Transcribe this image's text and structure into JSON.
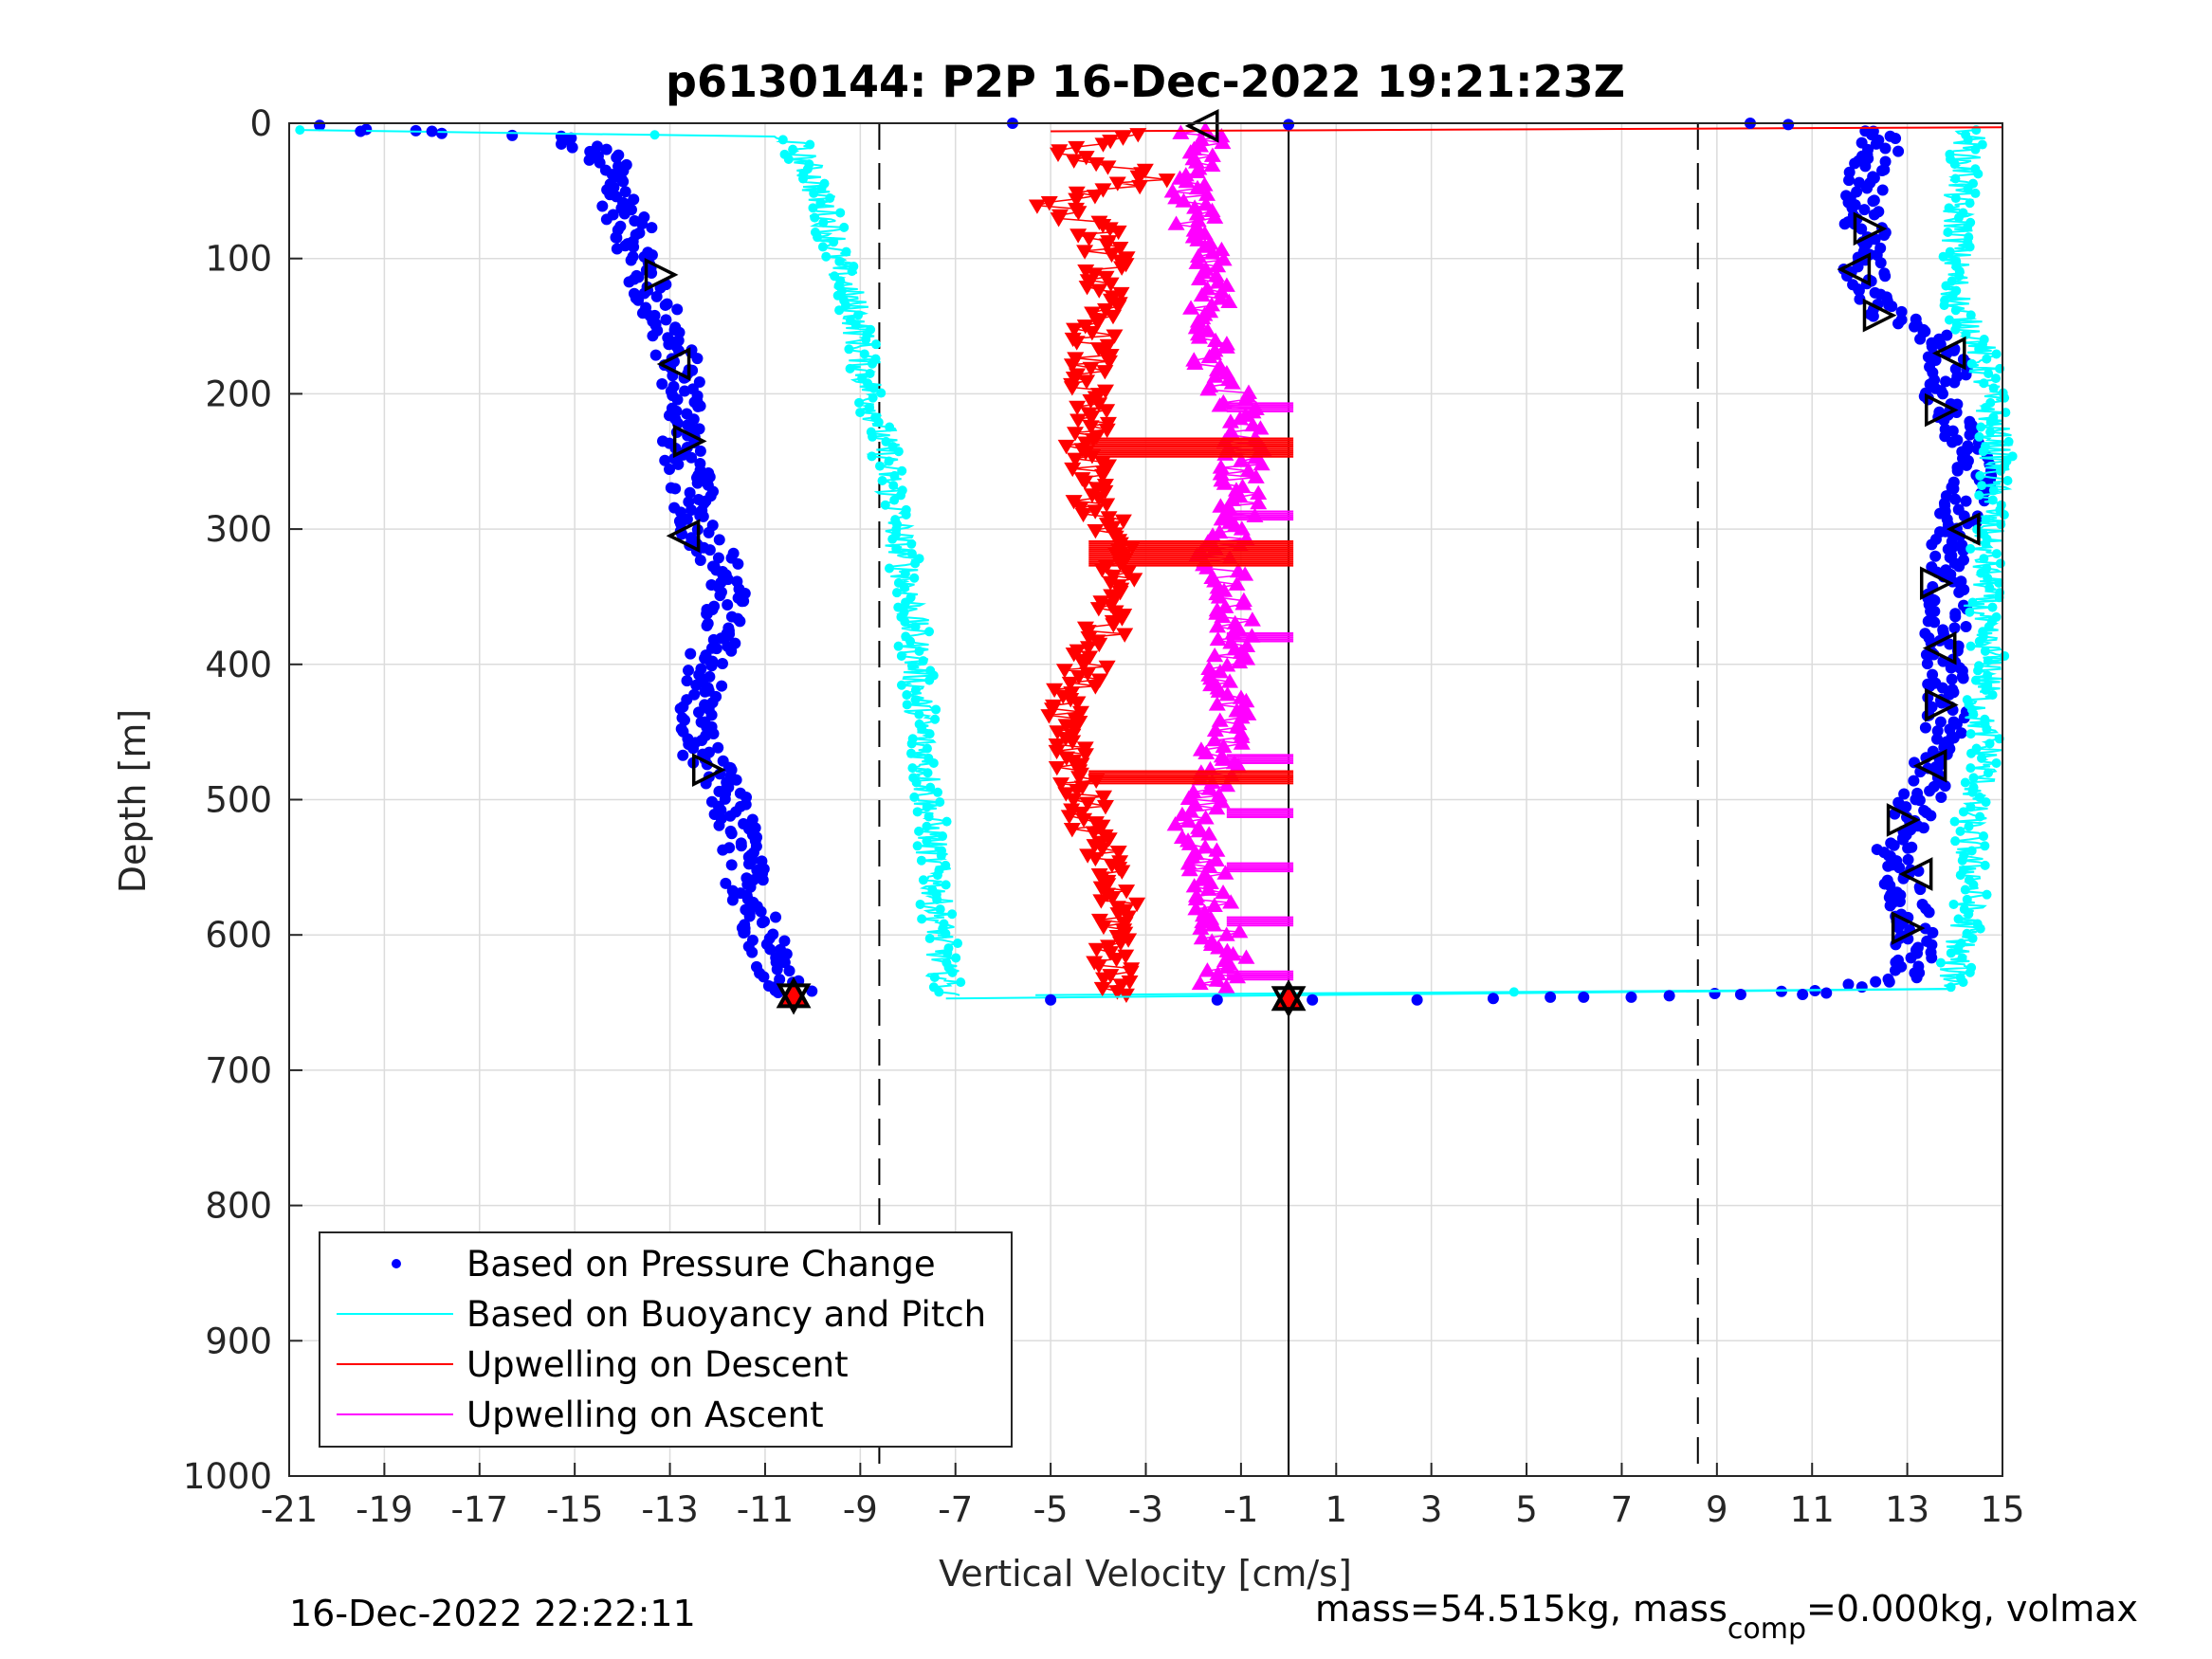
{
  "chart_data": {
    "type": "scatter",
    "title": "p6130144: P2P 16-Dec-2022 19:21:23Z",
    "xlabel": "Vertical Velocity [cm/s]",
    "ylabel": "Depth [m]",
    "xlim": [
      -21,
      15
    ],
    "ylim": [
      0,
      1000
    ],
    "y_reversed": true,
    "grid": true,
    "x_ticks": [
      "-21",
      "-19",
      "-17",
      "-15",
      "-13",
      "-11",
      "-9",
      "-7",
      "-5",
      "-3",
      "-1",
      "1",
      "3",
      "5",
      "7",
      "9",
      "11",
      "13",
      "15"
    ],
    "y_ticks": [
      "0",
      "100",
      "200",
      "300",
      "400",
      "500",
      "600",
      "700",
      "800",
      "900",
      "1000"
    ],
    "legend_position": "bottom-left",
    "reference_lines": [
      {
        "style": "dashed",
        "x": -8.6
      },
      {
        "style": "dashed",
        "x": 8.6
      },
      {
        "style": "solid",
        "x": 0
      }
    ],
    "series": [
      {
        "name": "Based on Pressure Change",
        "color": "#0000ff",
        "marker": "dot",
        "descent": {
          "depth": [
            2,
            10,
            20,
            40,
            60,
            80,
            100,
            120,
            140,
            160,
            180,
            200,
            220,
            240,
            260,
            280,
            300,
            320,
            340,
            360,
            380,
            400,
            420,
            440,
            460,
            480,
            500,
            520,
            540,
            560,
            580,
            600,
            620,
            635,
            645
          ],
          "velocity": [
            -20.5,
            -15.5,
            -14.5,
            -14.2,
            -14.0,
            -13.8,
            -13.6,
            -13.5,
            -13.2,
            -13.0,
            -12.8,
            -12.7,
            -12.6,
            -12.8,
            -12.6,
            -12.5,
            -12.4,
            -12.0,
            -11.8,
            -11.9,
            -12.0,
            -12.2,
            -12.3,
            -12.5,
            -12.4,
            -12.1,
            -11.8,
            -11.6,
            -11.5,
            -11.4,
            -11.2,
            -11.0,
            -10.8,
            -10.6,
            -10.3
          ]
        },
        "ascent": {
          "depth": [
            645,
            640,
            630,
            620,
            600,
            580,
            560,
            540,
            520,
            500,
            480,
            460,
            440,
            420,
            400,
            380,
            360,
            340,
            320,
            300,
            280,
            260,
            240,
            220,
            200,
            180,
            160,
            140,
            120,
            100,
            80,
            60,
            40,
            20,
            5
          ],
          "velocity": [
            8.0,
            11.5,
            13.0,
            13.1,
            13.2,
            13.0,
            12.8,
            12.8,
            12.9,
            13.3,
            13.4,
            13.6,
            13.8,
            13.8,
            13.7,
            13.8,
            13.9,
            13.8,
            13.8,
            14.0,
            14.2,
            14.4,
            14.2,
            13.9,
            13.8,
            13.9,
            13.6,
            12.6,
            12.2,
            12.0,
            12.1,
            12.2,
            12.0,
            12.4,
            12.3
          ]
        }
      },
      {
        "name": "Based on Buoyancy and Pitch",
        "color": "#00ffff",
        "marker": "line",
        "descent": {
          "depth": [
            5,
            10,
            20,
            40,
            60,
            80,
            100,
            120,
            140,
            160,
            180,
            200,
            220,
            240,
            260,
            280,
            300,
            320,
            340,
            360,
            380,
            400,
            420,
            440,
            460,
            480,
            500,
            520,
            540,
            560,
            580,
            600,
            620,
            640,
            645
          ],
          "velocity": [
            -21.0,
            -10.5,
            -10.3,
            -10.0,
            -9.8,
            -9.6,
            -9.5,
            -9.3,
            -9.1,
            -9.0,
            -8.9,
            -8.8,
            -8.6,
            -8.5,
            -8.4,
            -8.3,
            -8.2,
            -8.1,
            -8.0,
            -7.9,
            -7.9,
            -7.8,
            -7.8,
            -7.7,
            -7.7,
            -7.6,
            -7.6,
            -7.5,
            -7.5,
            -7.4,
            -7.4,
            -7.3,
            -7.3,
            -7.2,
            -7.2
          ]
        },
        "ascent": {
          "depth": [
            645,
            640,
            620,
            600,
            580,
            560,
            540,
            520,
            500,
            480,
            460,
            440,
            420,
            400,
            380,
            360,
            340,
            320,
            300,
            280,
            260,
            240,
            220,
            200,
            180,
            160,
            140,
            120,
            100,
            80,
            60,
            40,
            20,
            5
          ],
          "velocity": [
            -7.2,
            14.0,
            14.0,
            14.2,
            14.3,
            14.4,
            14.3,
            14.3,
            14.4,
            14.6,
            14.7,
            14.5,
            14.6,
            14.8,
            14.6,
            14.5,
            14.7,
            14.6,
            14.7,
            14.8,
            14.8,
            14.9,
            14.8,
            14.7,
            14.6,
            14.5,
            14.1,
            14.0,
            14.0,
            14.1,
            14.0,
            14.2,
            14.2,
            14.4
          ]
        }
      },
      {
        "name": "Upwelling on Descent",
        "color": "#ff0000",
        "marker": "triangle-down",
        "depth": [
          8,
          20,
          40,
          60,
          80,
          100,
          120,
          140,
          160,
          180,
          200,
          220,
          240,
          260,
          280,
          300,
          320,
          340,
          360,
          380,
          400,
          420,
          440,
          460,
          480,
          500,
          520,
          540,
          560,
          580,
          600,
          620,
          640,
          645
        ],
        "velocity": [
          -3.0,
          -4.8,
          -2.8,
          -5.0,
          -4.0,
          -3.8,
          -3.9,
          -4.0,
          -4.1,
          -4.2,
          -4.3,
          -4.2,
          -4.3,
          -4.2,
          -4.1,
          -3.8,
          -3.6,
          -3.6,
          -3.7,
          -3.9,
          -4.2,
          -4.5,
          -4.6,
          -4.5,
          -4.4,
          -4.3,
          -4.2,
          -4.0,
          -3.8,
          -3.6,
          -3.6,
          -3.7,
          -3.5,
          -3.0
        ]
      },
      {
        "name": "Upwelling on Ascent",
        "color": "#ff00ff",
        "marker": "triangle-up",
        "depth": [
          640,
          620,
          600,
          580,
          560,
          540,
          520,
          500,
          480,
          460,
          440,
          420,
          400,
          380,
          360,
          340,
          320,
          300,
          280,
          260,
          240,
          220,
          200,
          180,
          160,
          140,
          120,
          100,
          80,
          60,
          40,
          20,
          5
        ],
        "velocity": [
          -1.5,
          -1.2,
          -1.4,
          -1.6,
          -1.7,
          -1.8,
          -2.0,
          -1.8,
          -1.5,
          -1.4,
          -1.2,
          -1.3,
          -1.3,
          -1.2,
          -1.2,
          -1.3,
          -1.5,
          -1.1,
          -1.0,
          -1.0,
          -0.9,
          -1.0,
          -1.2,
          -1.6,
          -1.7,
          -1.6,
          -1.7,
          -1.8,
          -1.9,
          -2.0,
          -2.0,
          -1.7,
          -1.9
        ]
      }
    ],
    "triangle_markers": {
      "descent": [
        [
          -13.2,
          112
        ],
        [
          -12.9,
          178
        ],
        [
          -12.6,
          235
        ],
        [
          -12.7,
          305
        ],
        [
          -12.2,
          478
        ]
      ],
      "ascent": [
        [
          12.2,
          78
        ],
        [
          11.9,
          108
        ],
        [
          12.4,
          142
        ],
        [
          13.9,
          170
        ],
        [
          13.7,
          212
        ],
        [
          14.2,
          300
        ],
        [
          13.6,
          340
        ],
        [
          13.7,
          388
        ],
        [
          13.7,
          430
        ],
        [
          13.5,
          475
        ],
        [
          12.9,
          515
        ],
        [
          13.2,
          555
        ],
        [
          13.0,
          595
        ]
      ],
      "surface": [
        [
          -1.8,
          2
        ]
      ],
      "bottom": [
        [
          -10.4,
          645
        ],
        [
          0,
          647
        ]
      ]
    }
  },
  "footer": {
    "timestamp": "16-Dec-2022 22:22:11",
    "mass_prefix": "mass=54.515kg, mass",
    "mass_sub": "comp",
    "mass_suffix": "=0.000kg, volmax"
  }
}
